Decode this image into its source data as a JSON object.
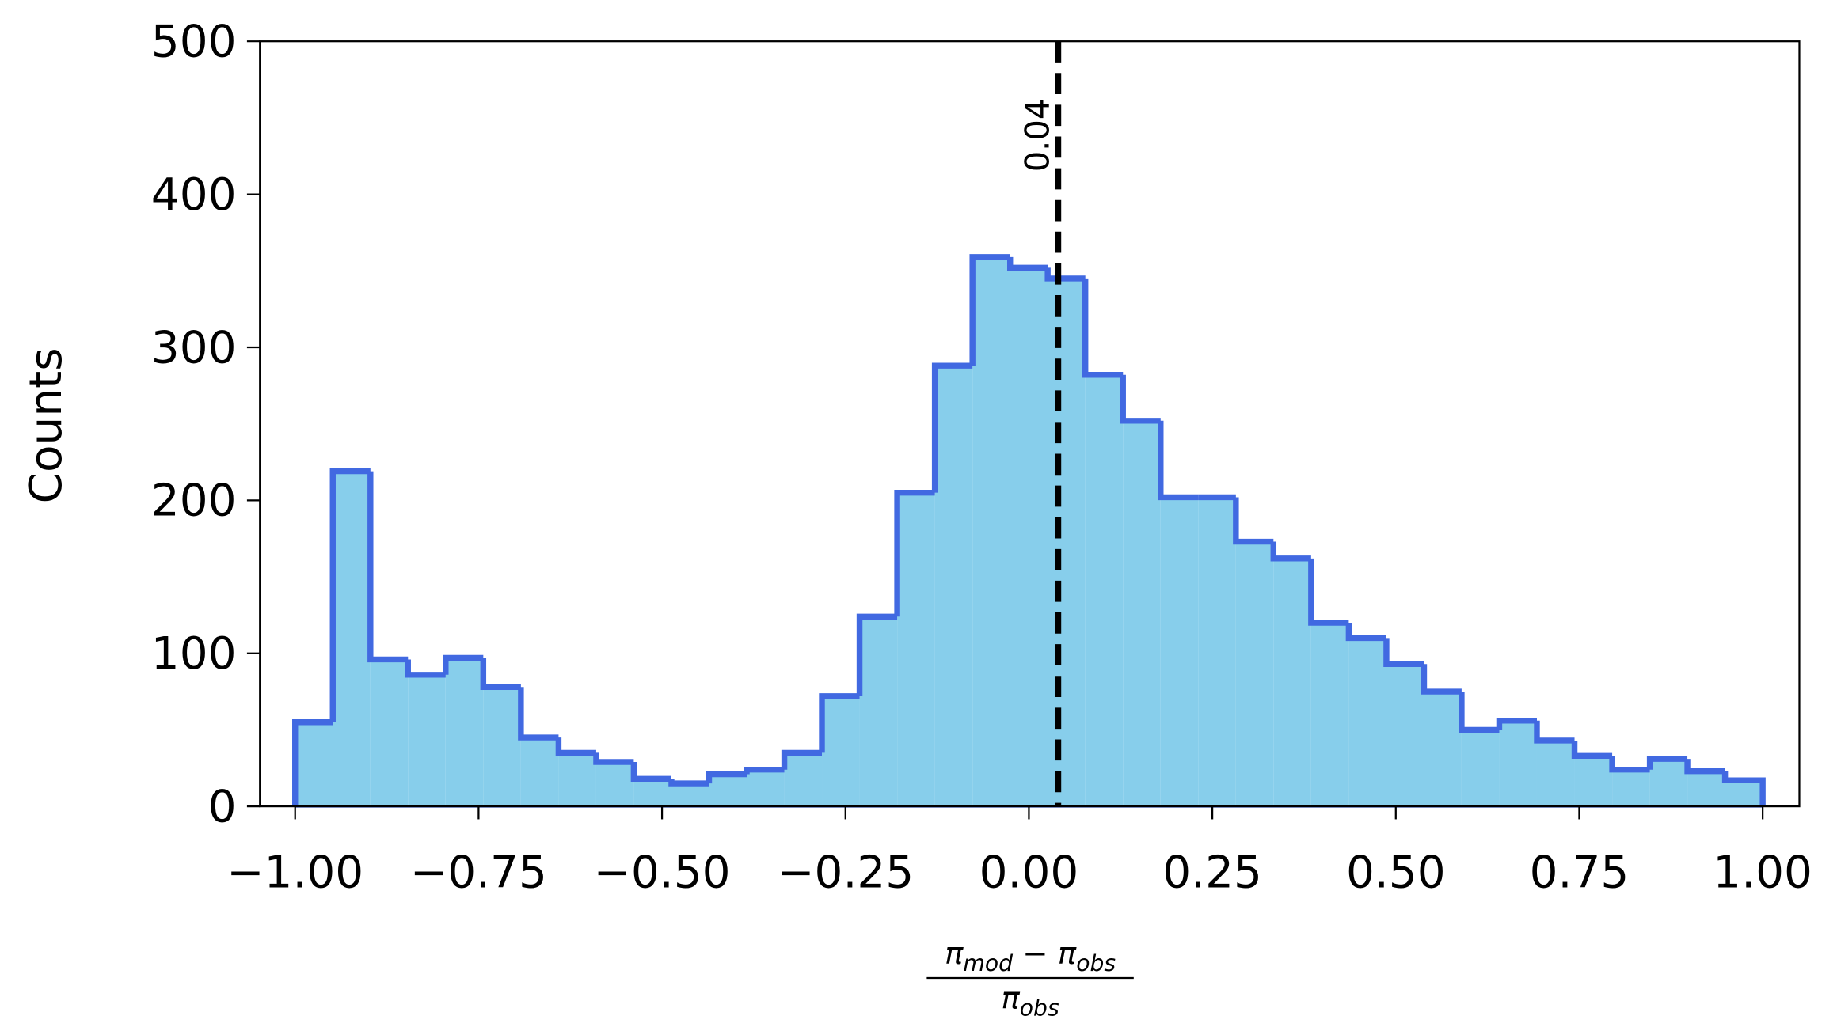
{
  "chart_data": {
    "type": "histogram",
    "ylabel": "Counts",
    "xlabel": {
      "numerator": [
        "π",
        "mod",
        " − π",
        "obs"
      ],
      "denominator": [
        "π",
        "obs"
      ]
    },
    "bins": [
      -1.0,
      -0.9487,
      -0.8974,
      -0.8462,
      -0.7949,
      -0.7436,
      -0.6923,
      -0.641,
      -0.5897,
      -0.5385,
      -0.4872,
      -0.4359,
      -0.3846,
      -0.3333,
      -0.2821,
      -0.2308,
      -0.1795,
      -0.1282,
      -0.0769,
      -0.0256,
      0.0256,
      0.0769,
      0.1282,
      0.1795,
      0.2308,
      0.2821,
      0.3333,
      0.3846,
      0.4359,
      0.4872,
      0.5385,
      0.5897,
      0.641,
      0.6923,
      0.7436,
      0.7949,
      0.8462,
      0.8974,
      0.9487,
      1.0
    ],
    "values": [
      55,
      219,
      96,
      86,
      97,
      78,
      45,
      35,
      29,
      18,
      15,
      21,
      24,
      35,
      72,
      124,
      205,
      288,
      359,
      352,
      345,
      282,
      252,
      202,
      202,
      173,
      162,
      120,
      110,
      93,
      75,
      50,
      56,
      43,
      33,
      24,
      31,
      23,
      17
    ],
    "fill_color": "#87ceeb",
    "edge_color": "#4169e1",
    "vline": {
      "value": 0.04,
      "label": "0.04",
      "color": "#000000"
    },
    "xlim": [
      -1.048,
      1.05
    ],
    "ylim": [
      0,
      500
    ],
    "xticks": [
      {
        "value": -1.0,
        "label": "−1.00"
      },
      {
        "value": -0.75,
        "label": "−0.75"
      },
      {
        "value": -0.5,
        "label": "−0.50"
      },
      {
        "value": -0.25,
        "label": "−0.25"
      },
      {
        "value": 0,
        "label": "0.00"
      },
      {
        "value": 0.25,
        "label": "0.25"
      },
      {
        "value": 0.5,
        "label": "0.50"
      },
      {
        "value": 0.75,
        "label": "0.75"
      },
      {
        "value": 1.0,
        "label": "1.00"
      }
    ],
    "yticks": [
      0,
      100,
      200,
      300,
      400,
      500
    ],
    "grid": false
  }
}
